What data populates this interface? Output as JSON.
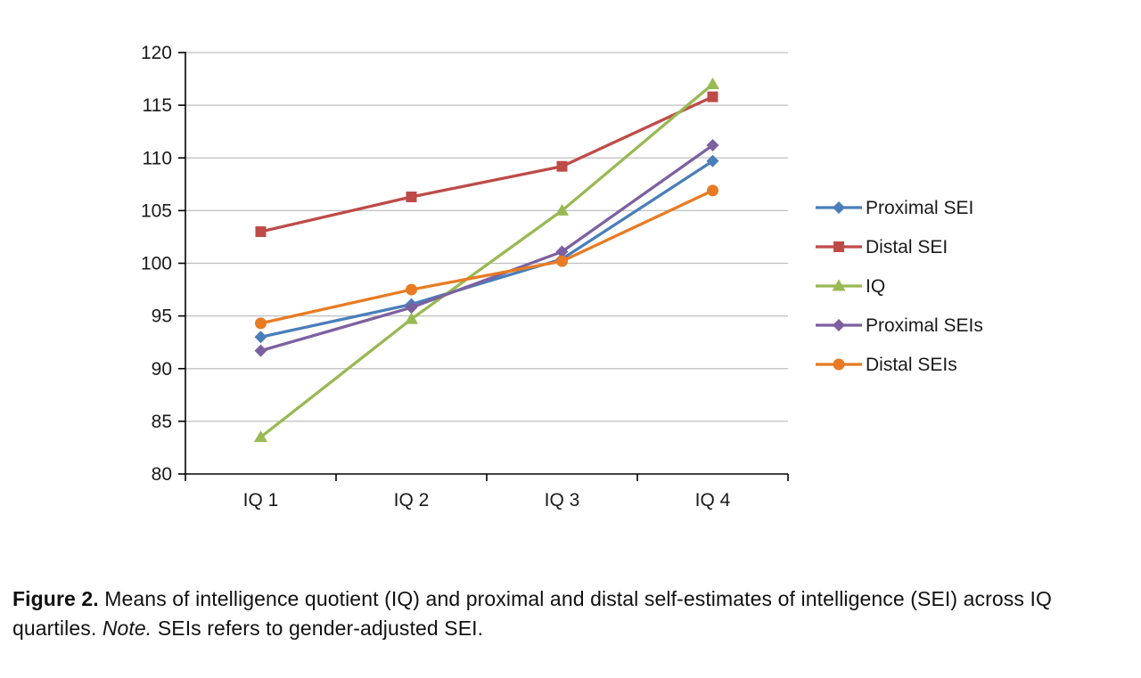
{
  "chart_data": {
    "type": "line",
    "title": "",
    "xlabel": "",
    "ylabel": "",
    "categories": [
      "IQ 1",
      "IQ 2",
      "IQ 3",
      "IQ 4"
    ],
    "series": [
      {
        "name": "Proximal SEI",
        "marker": "diamond",
        "color": "#4A7EBB",
        "values": [
          93.0,
          96.1,
          100.4,
          109.7
        ]
      },
      {
        "name": "Distal SEI",
        "marker": "square",
        "color": "#BE4B48",
        "values": [
          103.0,
          106.3,
          109.2,
          115.8
        ]
      },
      {
        "name": "IQ",
        "marker": "triangle",
        "color": "#98B954",
        "values": [
          83.5,
          94.7,
          105.0,
          117.0
        ]
      },
      {
        "name": "Proximal SEIs",
        "marker": "diamond",
        "color": "#7D60A0",
        "values": [
          91.7,
          95.8,
          101.1,
          111.2
        ]
      },
      {
        "name": "Distal SEIs",
        "marker": "circle",
        "color": "#E87B23",
        "values": [
          94.3,
          97.5,
          100.2,
          106.9
        ]
      }
    ],
    "ylim": [
      80,
      120
    ],
    "ytick_step": 5,
    "grid": true,
    "grid_color": "#BFBFBF",
    "axis_color": "#000000",
    "legend_position": "right"
  },
  "caption": {
    "figure_label": "Figure 2.",
    "text_1": "Means of intelligence quotient (IQ) and proximal and distal self-estimates of intelligence (SEI) across IQ quartiles.",
    "note_label": "Note.",
    "text_2": "SEIs refers to gender-adjusted SEI."
  }
}
